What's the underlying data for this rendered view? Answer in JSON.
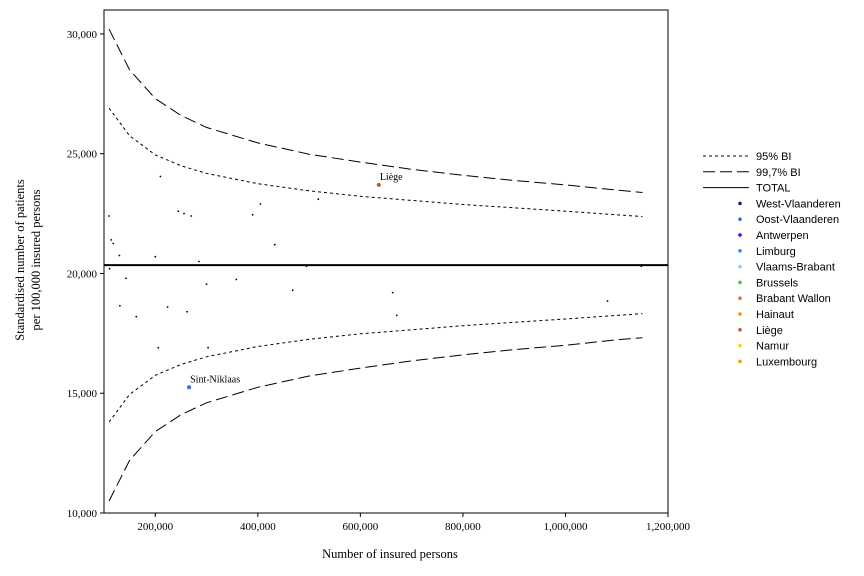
{
  "chart_data": {
    "type": "scatter",
    "xlabel": "Number of insured persons",
    "ylabel_lines": [
      "Standardised number of patients",
      "per 100,000 insured persons"
    ],
    "xlim": [
      100000,
      1200000
    ],
    "ylim": [
      10000,
      31000
    ],
    "xticks": [
      200000,
      400000,
      600000,
      800000,
      1000000,
      1200000
    ],
    "xtick_labels": [
      "200,000",
      "400,000",
      "600,000",
      "800,000",
      "1,000,000",
      "1,200,000"
    ],
    "yticks": [
      10000,
      15000,
      20000,
      25000,
      30000
    ],
    "ytick_labels": [
      "10,000",
      "15,000",
      "20,000",
      "25,000",
      "30,000"
    ],
    "grid": false,
    "legend_position": "right",
    "legend": [
      {
        "label": "95% BI",
        "kind": "line",
        "dash": "short"
      },
      {
        "label": "99,7% BI",
        "kind": "line",
        "dash": "long"
      },
      {
        "label": "TOTAL",
        "kind": "line",
        "dash": "solid"
      },
      {
        "label": "West-Vlaanderen",
        "kind": "point",
        "color": "#1f1f8f"
      },
      {
        "label": "Oost-Vlaanderen",
        "kind": "point",
        "color": "#4169e1"
      },
      {
        "label": "Antwerpen",
        "kind": "point",
        "color": "#1a1aff"
      },
      {
        "label": "Limburg",
        "kind": "point",
        "color": "#1e90ff"
      },
      {
        "label": "Vlaams-Brabant",
        "kind": "point",
        "color": "#87cefa"
      },
      {
        "label": "Brussels",
        "kind": "point",
        "color": "#32cd32"
      },
      {
        "label": "Brabant Wallon",
        "kind": "point",
        "color": "#e2703a"
      },
      {
        "label": "Hainaut",
        "kind": "point",
        "color": "#ff8c00"
      },
      {
        "label": "Liège",
        "kind": "point",
        "color": "#c1562f"
      },
      {
        "label": "Namur",
        "kind": "point",
        "color": "#ffd700"
      },
      {
        "label": "Luxembourg",
        "kind": "point",
        "color": "#f4a300"
      }
    ],
    "total": 20350,
    "band_95": {
      "x": [
        110000,
        150000,
        200000,
        250000,
        300000,
        400000,
        500000,
        600000,
        700000,
        800000,
        900000,
        1000000,
        1100000,
        1150000
      ],
      "upper": [
        26900,
        25750,
        24950,
        24500,
        24180,
        23750,
        23450,
        23220,
        23050,
        22880,
        22740,
        22600,
        22450,
        22380
      ],
      "lower": [
        13800,
        14950,
        15750,
        16200,
        16520,
        16950,
        17250,
        17480,
        17650,
        17820,
        17960,
        18100,
        18250,
        18320
      ]
    },
    "band_997": {
      "x": [
        110000,
        150000,
        200000,
        250000,
        300000,
        400000,
        500000,
        600000,
        700000,
        800000,
        900000,
        1000000,
        1100000,
        1150000
      ],
      "upper": [
        30200,
        28500,
        27300,
        26600,
        26100,
        25450,
        24980,
        24650,
        24350,
        24100,
        23880,
        23700,
        23480,
        23380
      ],
      "lower": [
        10500,
        12200,
        13400,
        14100,
        14600,
        15250,
        15720,
        16050,
        16350,
        16600,
        16820,
        17000,
        17230,
        17320
      ]
    },
    "points": [
      {
        "x": 636000,
        "y": 23700,
        "color": "#c1562f",
        "label": "Liège"
      },
      {
        "x": 266000,
        "y": 15250,
        "color": "#4169e1",
        "label": "Sint-Niklaas"
      },
      {
        "x": 110000,
        "y": 22400,
        "color": "#000000"
      },
      {
        "x": 114000,
        "y": 21400,
        "color": "#000000"
      },
      {
        "x": 118000,
        "y": 21250,
        "color": "#000000"
      },
      {
        "x": 111000,
        "y": 20200,
        "color": "#000000"
      },
      {
        "x": 130000,
        "y": 20750,
        "color": "#000000"
      },
      {
        "x": 143000,
        "y": 19800,
        "color": "#000000"
      },
      {
        "x": 131000,
        "y": 18650,
        "color": "#000000"
      },
      {
        "x": 163000,
        "y": 18200,
        "color": "#000000"
      },
      {
        "x": 200000,
        "y": 20700,
        "color": "#000000"
      },
      {
        "x": 210000,
        "y": 24050,
        "color": "#000000"
      },
      {
        "x": 206000,
        "y": 16900,
        "color": "#000000"
      },
      {
        "x": 224000,
        "y": 18600,
        "color": "#000000"
      },
      {
        "x": 245000,
        "y": 22600,
        "color": "#000000"
      },
      {
        "x": 256000,
        "y": 22500,
        "color": "#000000"
      },
      {
        "x": 262000,
        "y": 18400,
        "color": "#000000"
      },
      {
        "x": 270000,
        "y": 22400,
        "color": "#000000"
      },
      {
        "x": 285000,
        "y": 20500,
        "color": "#000000"
      },
      {
        "x": 300000,
        "y": 19550,
        "color": "#000000"
      },
      {
        "x": 303000,
        "y": 16900,
        "color": "#000000"
      },
      {
        "x": 358000,
        "y": 19750,
        "color": "#000000"
      },
      {
        "x": 390000,
        "y": 22450,
        "color": "#000000"
      },
      {
        "x": 405000,
        "y": 22900,
        "color": "#000000"
      },
      {
        "x": 433000,
        "y": 21200,
        "color": "#000000"
      },
      {
        "x": 468000,
        "y": 19300,
        "color": "#000000"
      },
      {
        "x": 495000,
        "y": 20300,
        "color": "#000000"
      },
      {
        "x": 518000,
        "y": 23100,
        "color": "#000000"
      },
      {
        "x": 663000,
        "y": 19200,
        "color": "#000000"
      },
      {
        "x": 671000,
        "y": 18250,
        "color": "#000000"
      },
      {
        "x": 1082000,
        "y": 18850,
        "color": "#000000"
      },
      {
        "x": 1148000,
        "y": 20300,
        "color": "#000000"
      }
    ]
  }
}
